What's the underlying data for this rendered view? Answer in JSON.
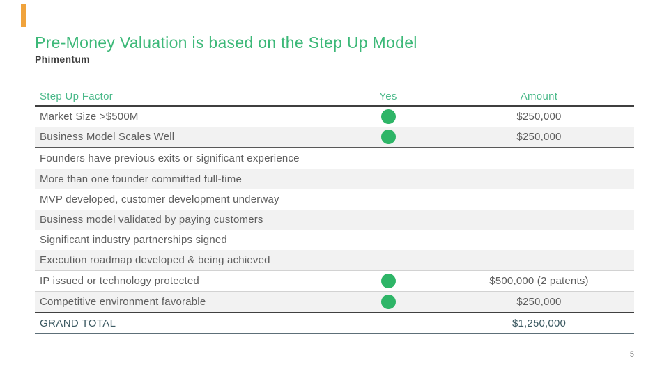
{
  "slide": {
    "title": "Pre-Money Valuation is based on the Step Up Model",
    "subtitle": "Phimentum",
    "page_number": "5"
  },
  "colors": {
    "title_green": "#3CB878",
    "header_green": "#4BB98A",
    "dot_green": "#2EB567",
    "body_text_gray": "#5e5e5e",
    "grand_total_teal": "#3C5A62",
    "shaded_row_gray": "#f2f2f2",
    "accent_orange": "#F0A33C",
    "dark_rule": "#3f3f3f"
  },
  "table": {
    "columns": [
      "Step Up Factor",
      "Yes",
      "Amount"
    ],
    "rows": [
      {
        "factor": "Market Size >$500M",
        "yes": true,
        "amount": "$250,000",
        "shaded": false,
        "border": ""
      },
      {
        "factor": "Business Model Scales Well",
        "yes": true,
        "amount": "$250,000",
        "shaded": true,
        "border": "medium"
      },
      {
        "factor": "Founders have previous exits or significant experience",
        "yes": false,
        "amount": "",
        "shaded": false,
        "border": "light"
      },
      {
        "factor": "More than one founder committed full-time",
        "yes": false,
        "amount": "",
        "shaded": true,
        "border": ""
      },
      {
        "factor": "MVP developed, customer development underway",
        "yes": false,
        "amount": "",
        "shaded": false,
        "border": ""
      },
      {
        "factor": "Business model validated by paying customers",
        "yes": false,
        "amount": "",
        "shaded": true,
        "border": ""
      },
      {
        "factor": "Significant industry partnerships signed",
        "yes": false,
        "amount": "",
        "shaded": false,
        "border": ""
      },
      {
        "factor": "Execution roadmap developed & being achieved",
        "yes": false,
        "amount": "",
        "shaded": true,
        "border": "light"
      },
      {
        "factor": "IP issued or technology protected",
        "yes": true,
        "amount": "$500,000 (2 patents)",
        "shaded": false,
        "border": "light"
      },
      {
        "factor": "Competitive environment favorable",
        "yes": true,
        "amount": "$250,000",
        "shaded": true,
        "border": "dark"
      }
    ],
    "total": {
      "label": "GRAND TOTAL",
      "amount": "$1,250,000"
    }
  }
}
